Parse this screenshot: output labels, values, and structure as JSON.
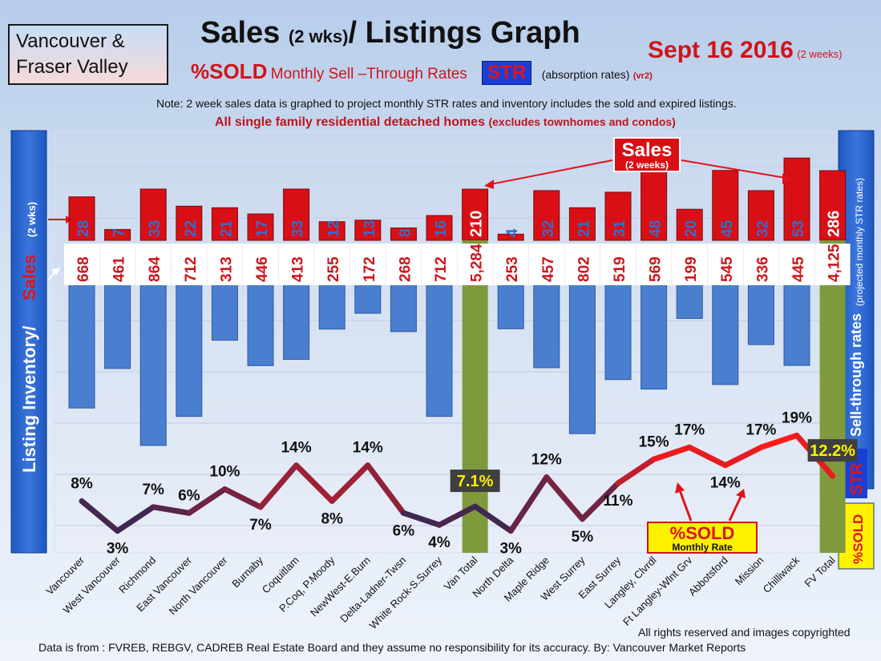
{
  "header": {
    "region_line1": "Vancouver &",
    "region_line2": "Fraser Valley",
    "title_main": "Sales",
    "title_paren": "(2 wks)",
    "title_rest": "/ Listings Graph",
    "date": "Sept 16 2016",
    "date_note": "(2 weeks)",
    "pct_sold": "%SOLD",
    "subtitle_text": "Monthly Sell –Through Rates",
    "str_badge": "STR",
    "absorption": "(absorption rates)",
    "version": "(vr2)",
    "note": "Note: 2 week sales data is graphed to project monthly STR rates and inventory includes the sold and expired listings.",
    "scope_main": "All single family residential detached homes",
    "scope_paren": "(excludes townhomes and condos)"
  },
  "side_labels": {
    "left_inventory": "Listing Inventory/",
    "left_sales": "Sales",
    "left_paren": "(2 wks)",
    "right_main": "Sell-through rates",
    "right_paren": "(projected monthly STR rates)",
    "right_str": "STR",
    "right_pct": "%SOLD"
  },
  "callouts": {
    "sales_main": "Sales",
    "sales_sub": "(2 weeks)",
    "pct_sold": "%SOLD",
    "monthly_rate": "Monthly Rate"
  },
  "chart_data": {
    "type": "bar",
    "categories": [
      "Vancouver",
      "West Vancouver",
      "Richmond",
      "East Vancouver",
      "North Vancouver",
      "Burnaby",
      "Coquitlam",
      "P.Coq, P.Moody",
      "NewWest-E.Burn",
      "Delta-Ladner-Twsn",
      "White Rock-S.Surrey",
      "Van Total",
      "North Delta",
      "Maple Ridge",
      "West Surrey",
      "East Surrey",
      "Langley, Clvrdl",
      "Ft Langley-Wlnt Grv",
      "Abbotsford",
      "Mission",
      "Chilliwack",
      "FV Total"
    ],
    "series": [
      {
        "name": "Sales (2 weeks)",
        "values": [
          28,
          7,
          33,
          22,
          21,
          17,
          33,
          12,
          13,
          8,
          16,
          210,
          4,
          32,
          21,
          31,
          48,
          20,
          45,
          32,
          53,
          286
        ],
        "labels": [
          "28",
          "7",
          "33",
          "22",
          "21",
          "17",
          "33",
          "12",
          "13",
          "8",
          "16",
          "210",
          "4",
          "32",
          "21",
          "31",
          "48",
          "20",
          "45",
          "32",
          "53",
          "286"
        ]
      },
      {
        "name": "Listing Inventory",
        "values": [
          668,
          461,
          864,
          712,
          313,
          446,
          413,
          255,
          172,
          268,
          712,
          5284,
          253,
          457,
          802,
          519,
          569,
          199,
          545,
          336,
          445,
          4125
        ],
        "labels": [
          "668",
          "461",
          "864",
          "712",
          "313",
          "446",
          "413",
          "255",
          "172",
          "268",
          "712",
          "5,284",
          "253",
          "457",
          "802",
          "519",
          "569",
          "199",
          "545",
          "336",
          "445",
          "4,125"
        ]
      },
      {
        "name": "%SOLD Monthly Rate",
        "values": [
          8,
          3,
          7,
          6,
          10,
          7,
          14,
          8,
          14,
          6,
          4,
          7.1,
          3,
          12,
          5,
          11,
          15,
          17,
          14,
          17,
          19,
          12.2
        ],
        "labels": [
          "8%",
          "3%",
          "7%",
          "6%",
          "10%",
          "7%",
          "14%",
          "8%",
          "14%",
          "6%",
          "4%",
          "7.1%",
          "3%",
          "12%",
          "5%",
          "11%",
          "15%",
          "17%",
          "14%",
          "17%",
          "19%",
          "12.2%"
        ]
      }
    ],
    "total_categories": [
      "Van Total",
      "FV Total"
    ],
    "colors": {
      "sales": "#d90f16",
      "inventory": "#4a7fd0",
      "totals": "#7f9a3c",
      "line_low": "#1e2a5a",
      "line_high": "#ff1a1a"
    }
  },
  "footer": {
    "copyright": "All rights reserved and  images copyrighted",
    "source": "Data is from : FVREB, REBGV, CADREB Real Estate Board and they assume no responsibility  for its accuracy. By: Vancouver Market Reports"
  }
}
